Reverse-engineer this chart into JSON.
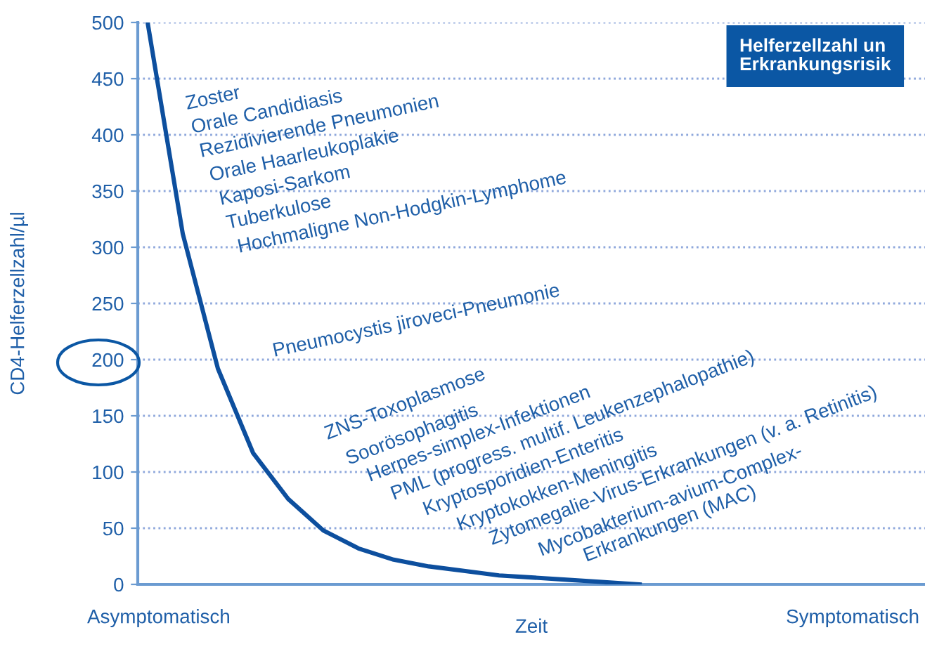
{
  "chart_data": {
    "type": "line",
    "title": "Helferzellzahl un\nErkrankungsrisik",
    "ylabel": "CD4-Helferzellzahl/µl",
    "xlabel": "Zeit",
    "categories": [
      null,
      null,
      null,
      null,
      null,
      null,
      null,
      null,
      null,
      null,
      null,
      null,
      null,
      null,
      null,
      null,
      null,
      null,
      null,
      null,
      null,
      null,
      null
    ],
    "series": [
      {
        "color": "#0d4f9e",
        "values": [
          500,
          312,
          192,
          117,
          76,
          48,
          32,
          22,
          16,
          12,
          8,
          6,
          4,
          2,
          0,
          null,
          null,
          null,
          null,
          null,
          null,
          null,
          null
        ]
      }
    ],
    "ylim": [
      0,
      500
    ],
    "yticks": [
      0,
      50,
      100,
      150,
      200,
      250,
      300,
      350,
      400,
      450,
      500
    ],
    "grid": "y",
    "marker": "none",
    "line_style": "solid",
    "annotations": [
      "Zoster",
      "Orale Candidiasis",
      "Rezidivierende Pneumonien",
      "Orale Haarleukoplakie",
      "Kaposi-Sarkom",
      "Tuberkulose",
      "Hochmaligne Non-Hodgkin-Lymphome",
      "Pneumocystis jiroveci-Pneumonie",
      "ZNS-Toxoplasmose",
      "Soorösophagitis",
      "Herpes-simplex-Infektionen",
      "PML (progress. multif. Leukenzephalopathie)",
      "Kryptosporidien-Enteritis",
      "Kryptokokken-Meningitis",
      "Zytomegalie-Virus-Erkrankungen (v. a. Retinitis)",
      "Mycobakterium-avium-Complex-",
      "Erkrankungen (MAC)",
      "Asymptomatisch",
      "Symptomatisch"
    ]
  }
}
